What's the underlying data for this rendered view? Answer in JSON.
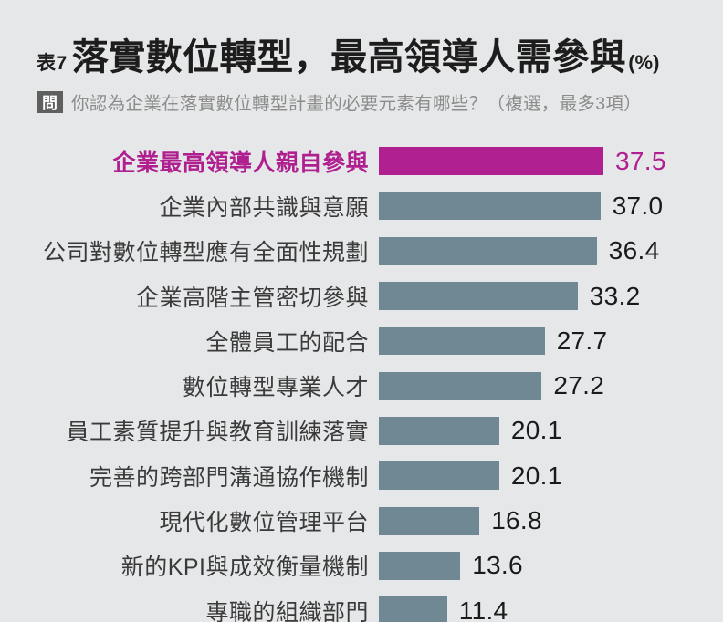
{
  "colors": {
    "background": "#e6e7e8",
    "highlight": "#b01f90",
    "bar": "#6f8894",
    "label_text": "#3a3a3a",
    "value_text": "#1a1a1a",
    "question_text": "#8c8c8c",
    "badge_background": "#5f5f5f",
    "title_text": "#1d1d1d"
  },
  "header": {
    "table_tag": "表7",
    "title": "落實數位轉型，最高領導人需參與",
    "title_suffix": "(%)",
    "question_badge": "問",
    "question": "你認為企業在落實數位轉型計畫的必要元素有哪些？（複選，最多3項）"
  },
  "chart_data": {
    "type": "bar",
    "orientation": "horizontal",
    "unit": "%",
    "title": "落實數位轉型，最高領導人需參與(%)",
    "categories": [
      "企業最高領導人親自參與",
      "企業內部共識與意願",
      "公司對數位轉型應有全面性規劃",
      "企業高階主管密切參與",
      "全體員工的配合",
      "數位轉型專業人才",
      "員工素質提升與教育訓練落實",
      "完善的跨部門溝通協作機制",
      "現代化數位管理平台",
      "新的KPI與成效衡量機制",
      "專職的組織部門"
    ],
    "values": [
      37.5,
      37.0,
      36.4,
      33.2,
      27.7,
      27.2,
      20.1,
      20.1,
      16.8,
      13.6,
      11.4
    ],
    "highlighted_index": 0,
    "value_labels_shown": true,
    "xlim": [
      0,
      40
    ],
    "grid": false,
    "legend": false
  }
}
